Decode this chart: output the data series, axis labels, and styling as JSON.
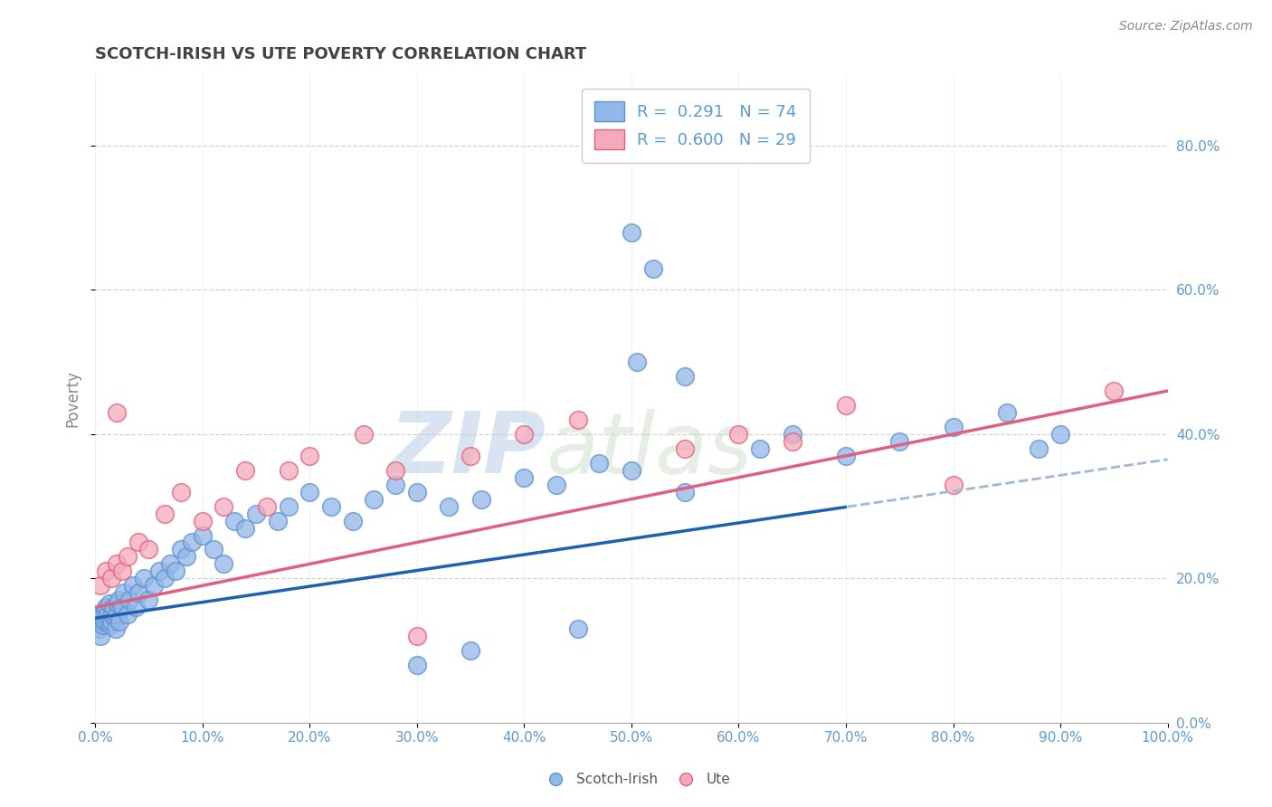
{
  "title": "SCOTCH-IRISH VS UTE POVERTY CORRELATION CHART",
  "source": "Source: ZipAtlas.com",
  "ylabel": "Poverty",
  "watermark_zip": "ZIP",
  "watermark_atlas": "atlas",
  "xlim": [
    0,
    100
  ],
  "ylim": [
    0,
    90
  ],
  "scotch_irish_R": 0.291,
  "scotch_irish_N": 74,
  "ute_R": 0.6,
  "ute_N": 29,
  "scotch_irish_color": "#90b8e8",
  "scotch_irish_edge": "#6090d0",
  "ute_color": "#f5aabb",
  "ute_edge": "#e06080",
  "scotch_irish_line_color": "#2060b0",
  "scotch_irish_dash_color": "#a0b8d8",
  "ute_line_color": "#e06080",
  "background_color": "#ffffff",
  "grid_color": "#cccccc",
  "title_color": "#444444",
  "axis_label_color": "#5b9bd5",
  "ylabel_color": "#888888",
  "source_color": "#888888",
  "legend_text_color": "#5b9bd5",
  "bottom_legend_color": "#555555",
  "si_line_intercept": 14.5,
  "si_line_slope": 0.22,
  "ute_line_intercept": 16.0,
  "ute_line_slope": 0.3,
  "si_dash_start": 70,
  "scotch_irish_x": [
    0.3,
    0.4,
    0.5,
    0.6,
    0.7,
    0.8,
    0.9,
    1.0,
    1.1,
    1.2,
    1.3,
    1.4,
    1.5,
    1.6,
    1.7,
    1.8,
    1.9,
    2.0,
    2.1,
    2.2,
    2.3,
    2.5,
    2.7,
    3.0,
    3.2,
    3.5,
    3.8,
    4.0,
    4.5,
    5.0,
    5.5,
    6.0,
    6.5,
    7.0,
    7.5,
    8.0,
    8.5,
    9.0,
    10.0,
    11.0,
    12.0,
    13.0,
    14.0,
    15.0,
    17.0,
    18.0,
    20.0,
    22.0,
    24.0,
    26.0,
    28.0,
    30.0,
    33.0,
    36.0,
    40.0,
    43.0,
    47.0,
    50.0,
    55.0,
    62.0,
    65.0,
    70.0,
    75.0,
    80.0,
    85.0,
    88.0,
    90.0,
    45.0,
    30.0,
    35.0,
    50.0,
    52.0,
    50.5,
    55.0
  ],
  "scotch_irish_y": [
    13.0,
    14.5,
    12.0,
    15.0,
    13.5,
    14.0,
    15.5,
    16.0,
    14.0,
    15.0,
    16.5,
    13.5,
    14.0,
    15.0,
    16.0,
    14.5,
    13.0,
    15.0,
    16.5,
    17.0,
    14.0,
    16.0,
    18.0,
    15.0,
    17.0,
    19.0,
    16.0,
    18.0,
    20.0,
    17.0,
    19.0,
    21.0,
    20.0,
    22.0,
    21.0,
    24.0,
    23.0,
    25.0,
    26.0,
    24.0,
    22.0,
    28.0,
    27.0,
    29.0,
    28.0,
    30.0,
    32.0,
    30.0,
    28.0,
    31.0,
    33.0,
    32.0,
    30.0,
    31.0,
    34.0,
    33.0,
    36.0,
    35.0,
    32.0,
    38.0,
    40.0,
    37.0,
    39.0,
    41.0,
    43.0,
    38.0,
    40.0,
    13.0,
    8.0,
    10.0,
    68.0,
    63.0,
    50.0,
    48.0
  ],
  "ute_x": [
    0.5,
    1.0,
    1.5,
    2.0,
    2.5,
    3.0,
    4.0,
    5.0,
    6.5,
    8.0,
    10.0,
    12.0,
    14.0,
    16.0,
    18.0,
    20.0,
    25.0,
    28.0,
    35.0,
    40.0,
    45.0,
    55.0,
    60.0,
    65.0,
    70.0,
    80.0,
    95.0,
    2.0,
    30.0
  ],
  "ute_y": [
    19.0,
    21.0,
    20.0,
    22.0,
    21.0,
    23.0,
    25.0,
    24.0,
    29.0,
    32.0,
    28.0,
    30.0,
    35.0,
    30.0,
    35.0,
    37.0,
    40.0,
    35.0,
    37.0,
    40.0,
    42.0,
    38.0,
    40.0,
    39.0,
    44.0,
    33.0,
    46.0,
    43.0,
    12.0
  ]
}
